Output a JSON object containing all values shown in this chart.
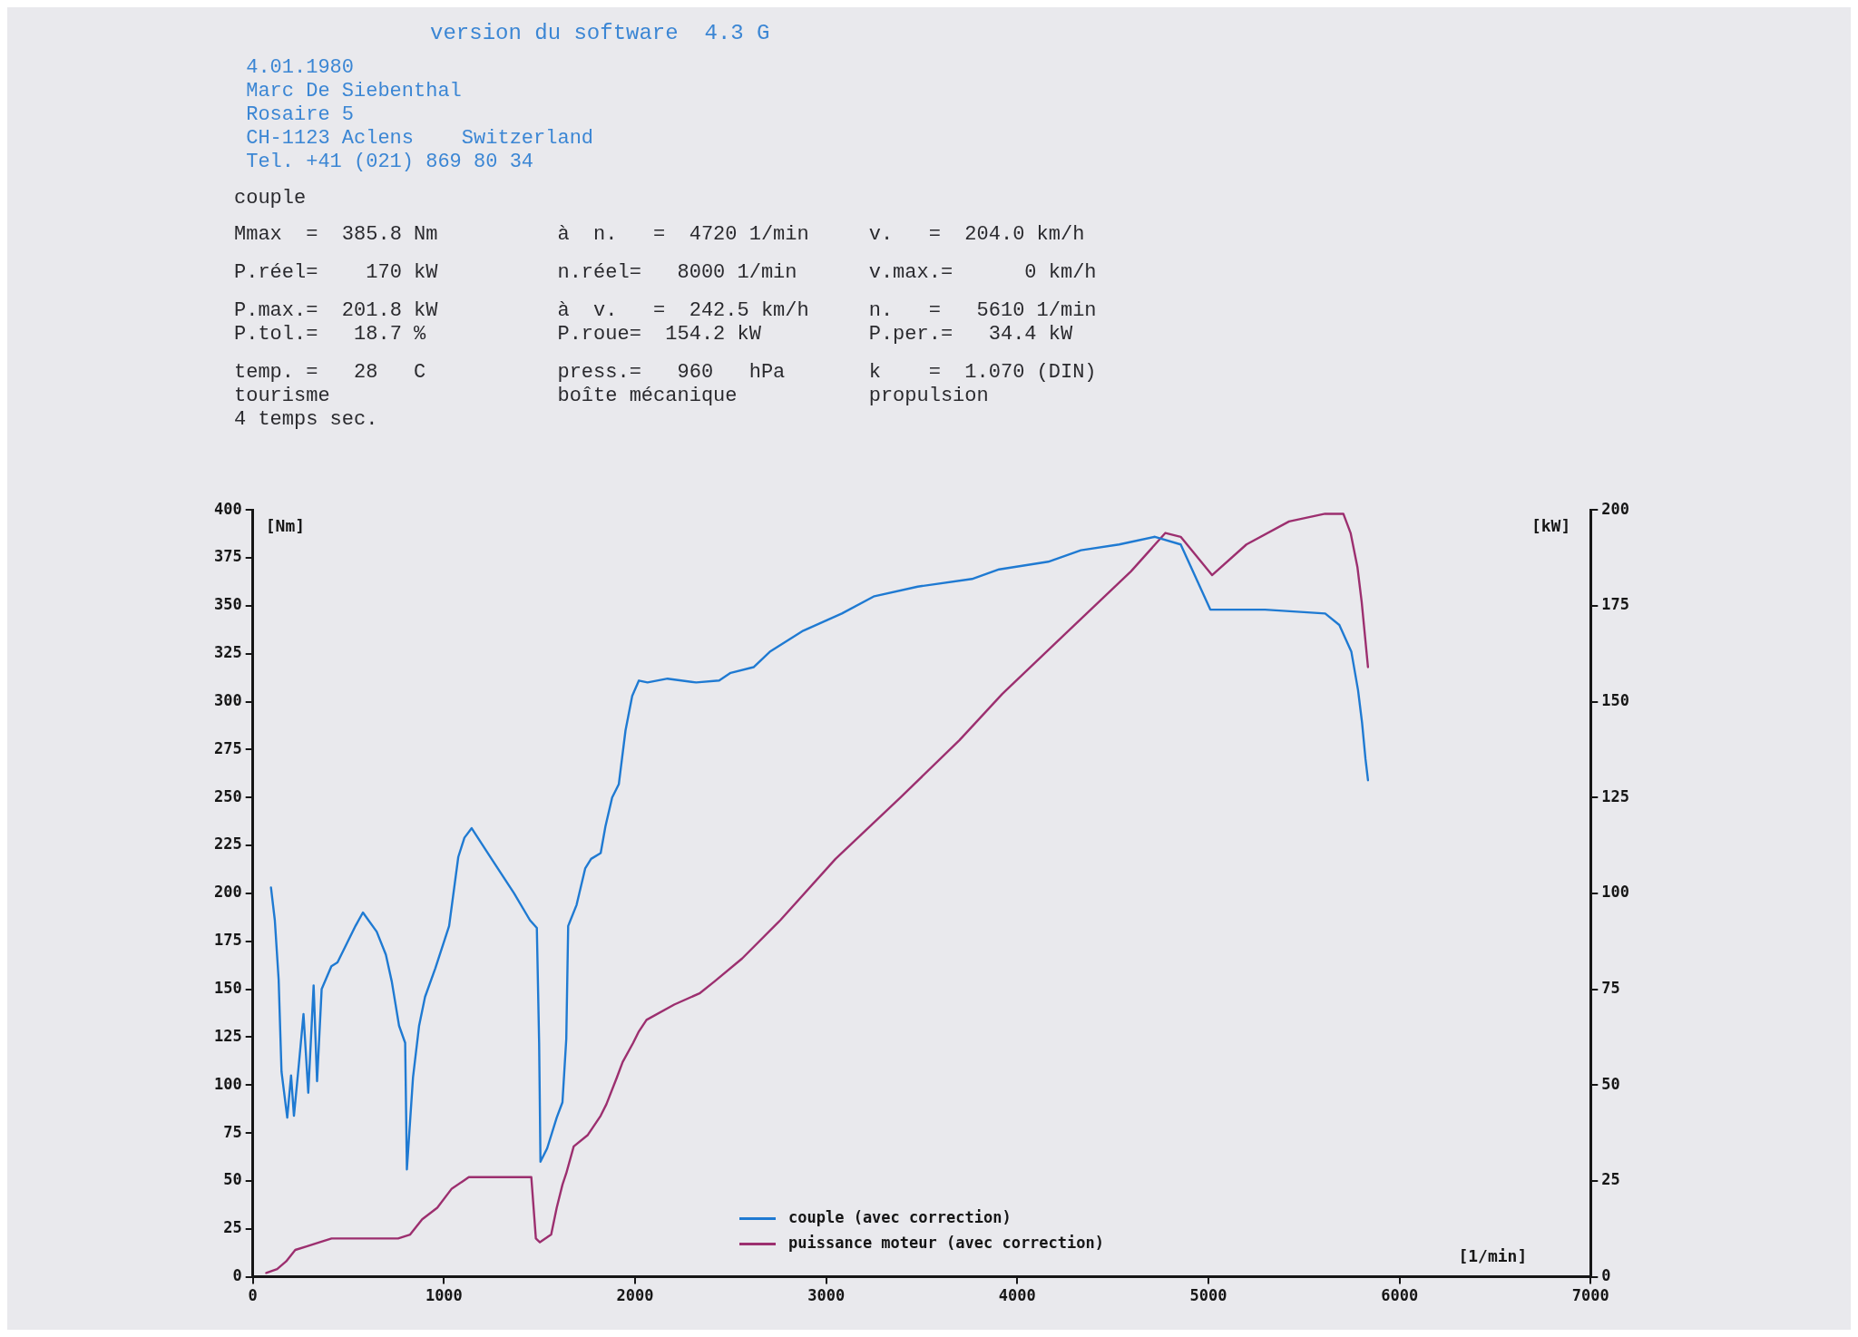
{
  "chart_data": {
    "type": "line",
    "title": "version du software  4.3 G",
    "xlabel": "[1/min]",
    "ylabel": "[Nm]",
    "y2label": "[kW]",
    "xlim": [
      0,
      7000
    ],
    "xticks": [
      0,
      1000,
      2000,
      3000,
      4000,
      5000,
      6000,
      7000
    ],
    "ylim": [
      0,
      400
    ],
    "yticks": [
      0,
      25,
      50,
      75,
      100,
      125,
      150,
      175,
      200,
      225,
      250,
      275,
      300,
      325,
      350,
      375,
      400
    ],
    "y2lim": [
      0,
      200
    ],
    "y2ticks": [
      0,
      25,
      50,
      75,
      100,
      125,
      150,
      175,
      200
    ],
    "grid": false,
    "legend": "bottom",
    "marker": "none",
    "line_style": "solid",
    "series": [
      {
        "name": "couple (avec correction)",
        "color": "#1f7ad2",
        "x": [
          95,
          115,
          135,
          150,
          180,
          200,
          215,
          240,
          265,
          290,
          318,
          336,
          360,
          411,
          443,
          537,
          576,
          648,
          696,
          727,
          765,
          797,
          806,
          838,
          870,
          901,
          955,
          1027,
          1075,
          1107,
          1145,
          1249,
          1367,
          1450,
          1486,
          1498,
          1505,
          1540,
          1590,
          1620,
          1640,
          1650,
          1694,
          1739,
          1770,
          1820,
          1845,
          1880,
          1915,
          1950,
          1985,
          2020,
          2065,
          2170,
          2320,
          2440,
          2500,
          2620,
          2705,
          2880,
          3082,
          3252,
          3479,
          3763,
          3905,
          4162,
          4333,
          4533,
          4720,
          4855,
          5010,
          5296,
          5611,
          5685,
          5748,
          5783,
          5804,
          5822,
          5835
        ],
        "values": [
          203,
          186,
          155,
          107,
          83,
          105,
          84,
          110,
          137,
          96,
          152,
          102,
          150,
          162,
          164,
          183,
          190,
          180,
          168,
          154,
          131,
          122,
          56,
          104,
          131,
          146,
          161,
          183,
          219,
          229,
          234,
          218,
          200,
          186,
          182,
          122,
          60,
          67,
          83,
          91,
          124,
          183,
          194,
          213,
          218,
          221,
          235,
          250,
          257,
          285,
          303,
          311,
          310,
          312,
          310,
          311,
          315,
          318,
          326,
          337,
          346,
          355,
          360,
          364,
          369,
          373,
          379,
          382,
          386,
          382,
          348,
          348,
          346,
          340,
          326,
          306,
          289,
          270,
          259
        ]
      },
      {
        "name": "puissance moteur (avec correction)",
        "color": "#9c2f6f",
        "axis": "y2",
        "x": [
          70,
          127,
          174,
          222,
          285,
          348,
          412,
          602,
          760,
          823,
          886,
          965,
          1041,
          1101,
          1130,
          1457,
          1481,
          1502,
          1561,
          1590,
          1620,
          1640,
          1679,
          1753,
          1820,
          1850,
          1905,
          1935,
          1990,
          2020,
          2060,
          2205,
          2340,
          2415,
          2560,
          2760,
          3049,
          3389,
          3698,
          3921,
          4258,
          4595,
          4775,
          4855,
          5019,
          5199,
          5422,
          5610,
          5706,
          5744,
          5780,
          5802,
          5835
        ],
        "values": [
          1,
          2,
          4,
          7,
          8,
          9,
          10,
          10,
          10,
          11,
          15,
          18,
          23,
          25,
          26,
          26,
          10,
          9,
          11,
          18,
          24,
          27,
          34,
          37,
          42,
          45,
          52,
          56,
          61,
          64,
          67,
          71,
          74,
          77,
          83,
          93,
          109,
          125,
          140,
          152,
          168,
          184,
          194,
          193,
          183,
          191,
          197,
          199,
          199,
          194,
          185,
          176,
          159
        ]
      }
    ],
    "annotations": [
      "4.01.1980",
      "Marc De Siebenthal",
      "Rosaire 5",
      "CH-1123 Aclens    Switzerland",
      "Tel. +41 (021) 869 80 34",
      "couple",
      "Mmax  =  385.8 Nm",
      "à  n.   =  4720 1/min",
      "v.   =  204.0 km/h",
      "P.réel=    170 kW",
      "n.réel=   8000 1/min",
      "v.max.=      0 km/h",
      "P.max.=  201.8 kW",
      "à  v.   =  242.5 km/h",
      "n.   =   5610 1/min",
      "P.tol.=   18.7 %",
      "P.roue=  154.2 kW",
      "P.per.=   34.4 kW",
      "temp. =   28   C",
      "press.=   960   hPa",
      "k    =  1.070 (DIN)",
      "tourisme",
      "boîte mécanique",
      "propulsion",
      "4 temps sec."
    ]
  }
}
